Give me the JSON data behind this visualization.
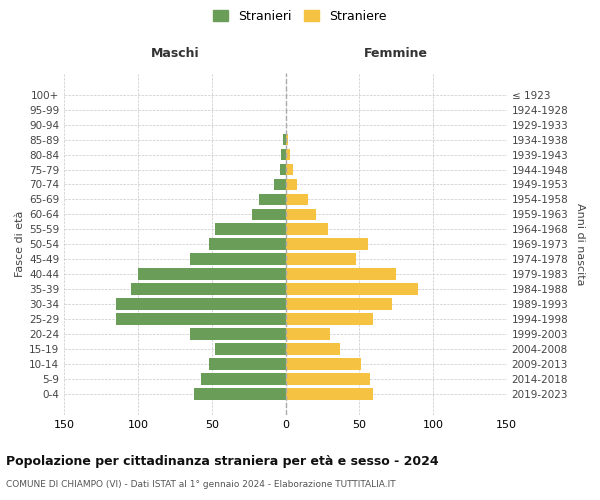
{
  "age_groups": [
    "100+",
    "95-99",
    "90-94",
    "85-89",
    "80-84",
    "75-79",
    "70-74",
    "65-69",
    "60-64",
    "55-59",
    "50-54",
    "45-49",
    "40-44",
    "35-39",
    "30-34",
    "25-29",
    "20-24",
    "15-19",
    "10-14",
    "5-9",
    "0-4"
  ],
  "birth_years": [
    "≤ 1923",
    "1924-1928",
    "1929-1933",
    "1934-1938",
    "1939-1943",
    "1944-1948",
    "1949-1953",
    "1954-1958",
    "1959-1963",
    "1964-1968",
    "1969-1973",
    "1974-1978",
    "1979-1983",
    "1984-1988",
    "1989-1993",
    "1994-1998",
    "1999-2003",
    "2004-2008",
    "2009-2013",
    "2014-2018",
    "2019-2023"
  ],
  "males": [
    0,
    0,
    0,
    2,
    3,
    4,
    8,
    18,
    23,
    48,
    52,
    65,
    100,
    105,
    115,
    115,
    65,
    48,
    52,
    57,
    62
  ],
  "females": [
    0,
    0,
    0,
    2,
    3,
    5,
    8,
    15,
    21,
    29,
    56,
    48,
    75,
    90,
    72,
    59,
    30,
    37,
    51,
    57,
    59
  ],
  "male_color": "#6a9e58",
  "female_color": "#f5c242",
  "background_color": "#ffffff",
  "grid_color": "#c8c8c8",
  "title": "Popolazione per cittadinanza straniera per età e sesso - 2024",
  "subtitle": "COMUNE DI CHIAMPO (VI) - Dati ISTAT al 1° gennaio 2024 - Elaborazione TUTTITALIA.IT",
  "left_label": "Maschi",
  "right_label": "Femmine",
  "y_left_label": "Fasce di età",
  "y_right_label": "Anni di nascita",
  "legend_male": "Stranieri",
  "legend_female": "Straniere",
  "xlim": 150
}
